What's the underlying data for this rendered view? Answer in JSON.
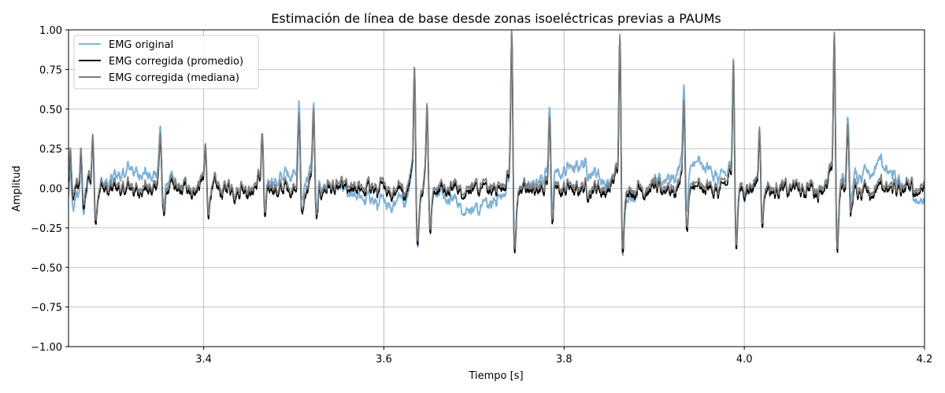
{
  "chart_data": {
    "type": "line",
    "title": "Estimación de línea de base desde zonas isoeléctricas previas a PAUMs",
    "xlabel": "Tiempo [s]",
    "ylabel": "Amplitud",
    "xlim": [
      3.25,
      4.2
    ],
    "ylim": [
      -1.0,
      1.0
    ],
    "xticks": [
      3.4,
      3.6,
      3.8,
      4.0,
      4.2
    ],
    "xtick_labels": [
      "3.4",
      "3.6",
      "3.8",
      "4.0",
      "4.2"
    ],
    "yticks": [
      -1.0,
      -0.75,
      -0.5,
      -0.25,
      0.0,
      0.25,
      0.5,
      0.75,
      1.0
    ],
    "ytick_labels": [
      "−1.00",
      "−0.75",
      "−0.50",
      "−0.25",
      "0.00",
      "0.25",
      "0.50",
      "0.75",
      "1.00"
    ],
    "grid": true,
    "legend_position": "top-left",
    "spikes_description": "Main spike events as [time_s, peak_amplitude]",
    "spikes": [
      [
        3.252,
        0.22
      ],
      [
        3.264,
        0.25
      ],
      [
        3.277,
        0.36
      ],
      [
        3.352,
        0.36
      ],
      [
        3.402,
        0.27
      ],
      [
        3.465,
        0.36
      ],
      [
        3.506,
        0.45
      ],
      [
        3.522,
        0.5
      ],
      [
        3.634,
        0.8
      ],
      [
        3.648,
        0.55
      ],
      [
        3.742,
        1.0
      ],
      [
        3.784,
        0.48
      ],
      [
        3.862,
        1.0
      ],
      [
        3.933,
        0.55
      ],
      [
        3.988,
        0.85
      ],
      [
        4.017,
        0.4
      ],
      [
        4.1,
        1.0
      ],
      [
        4.115,
        0.43
      ]
    ],
    "series": [
      {
        "name": "EMG original",
        "color": "#7fb2d6",
        "baseline_offsets": [
          [
            3.25,
            -0.1
          ],
          [
            3.32,
            0.12
          ],
          [
            3.38,
            0.0
          ],
          [
            3.46,
            0.0
          ],
          [
            3.5,
            0.1
          ],
          [
            3.55,
            -0.02
          ],
          [
            3.6,
            -0.1
          ],
          [
            3.65,
            0.0
          ],
          [
            3.7,
            -0.15
          ],
          [
            3.75,
            0.0
          ],
          [
            3.82,
            0.15
          ],
          [
            3.87,
            -0.05
          ],
          [
            3.95,
            0.15
          ],
          [
            4.0,
            -0.02
          ],
          [
            4.1,
            0.02
          ],
          [
            4.15,
            0.15
          ],
          [
            4.2,
            -0.1
          ]
        ]
      },
      {
        "name": "EMG corregida (promedio)",
        "color": "#000000"
      },
      {
        "name": "EMG corregida (mediana)",
        "color": "#7f7f7f"
      }
    ]
  }
}
